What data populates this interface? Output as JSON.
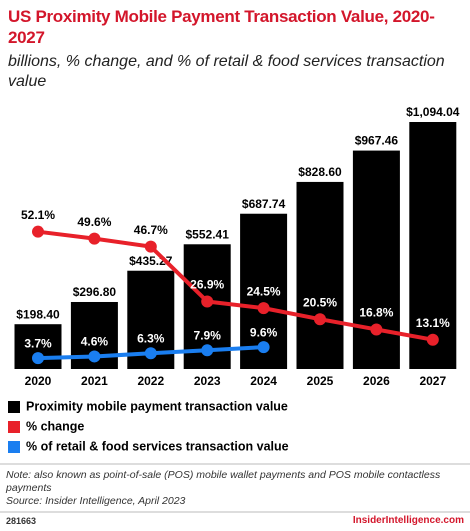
{
  "chart_data": {
    "type": "bar_line",
    "title": "US Proximity Mobile Payment Transaction Value, 2020-2027",
    "subtitle": "billions, % change, and % of retail & food services transaction value",
    "categories": [
      "2020",
      "2021",
      "2022",
      "2023",
      "2024",
      "2025",
      "2026",
      "2027"
    ],
    "series": [
      {
        "name": "Proximity mobile payment transaction value",
        "color": "#000000",
        "values": [
          198.4,
          296.8,
          435.27,
          552.41,
          687.74,
          828.6,
          967.46,
          1094.04
        ],
        "value_labels": [
          "$198.40",
          "$296.80",
          "$435.27",
          "$552.41",
          "$687.74",
          "$828.60",
          "$967.46",
          "$1,094.04"
        ]
      },
      {
        "name": "% change",
        "color": "#e8212a",
        "values": [
          52.1,
          49.6,
          46.7,
          26.9,
          24.5,
          20.5,
          16.8,
          13.1
        ],
        "value_labels": [
          "52.1%",
          "49.6%",
          "46.7%",
          "26.9%",
          "24.5%",
          "20.5%",
          "16.8%",
          "13.1%"
        ]
      },
      {
        "name": "% of retail & food services transaction value",
        "color": "#1a7ef0",
        "values": [
          3.7,
          4.6,
          6.3,
          7.9,
          9.6,
          null,
          null,
          null
        ],
        "value_labels": [
          "3.7%",
          "4.6%",
          "6.3%",
          "7.9%",
          "9.6%",
          null,
          null,
          null
        ]
      }
    ],
    "note": "Note: also known as point-of-sale (POS) mobile wallet payments and POS mobile contactless payments",
    "source": "Source: Insider Intelligence, April 2023",
    "chart_id": "281663",
    "brand": "InsiderIntelligence.com"
  }
}
